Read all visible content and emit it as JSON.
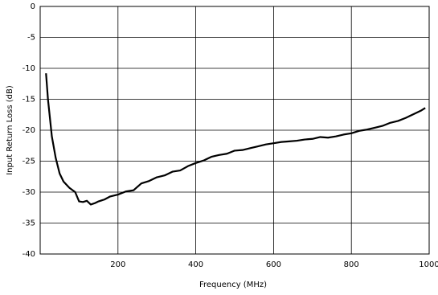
{
  "chart_data": {
    "type": "line",
    "x_label": "Frequency (MHz)",
    "y_label": "Input Return Loss (dB)",
    "x": [
      15,
      20,
      30,
      40,
      50,
      60,
      75,
      90,
      100,
      110,
      120,
      130,
      140,
      150,
      165,
      180,
      200,
      220,
      240,
      260,
      280,
      300,
      320,
      340,
      360,
      380,
      400,
      420,
      440,
      460,
      480,
      500,
      520,
      540,
      560,
      580,
      600,
      620,
      640,
      660,
      680,
      700,
      720,
      740,
      760,
      780,
      800,
      820,
      840,
      860,
      880,
      900,
      920,
      940,
      960,
      980,
      990
    ],
    "series": [
      {
        "color": "#000000",
        "values": [
          -10.8,
          -15,
          -21,
          -24.5,
          -27,
          -28.3,
          -29.3,
          -30,
          -31.5,
          -31.6,
          -31.4,
          -32,
          -31.8,
          -31.5,
          -31.2,
          -30.7,
          -30.4,
          -29.9,
          -29.7,
          -28.6,
          -28.2,
          -27.6,
          -27.3,
          -26.7,
          -26.5,
          -25.8,
          -25.3,
          -24.9,
          -24.3,
          -24.0,
          -23.8,
          -23.3,
          -23.2,
          -22.9,
          -22.6,
          -22.3,
          -22.1,
          -21.9,
          -21.8,
          -21.7,
          -21.5,
          -21.4,
          -21.1,
          -21.2,
          -21.0,
          -20.7,
          -20.5,
          -20.1,
          -19.9,
          -19.6,
          -19.3,
          -18.8,
          -18.5,
          -18.0,
          -17.4,
          -16.8,
          -16.4
        ]
      }
    ],
    "xlim": [
      0,
      1000
    ],
    "xticks": [
      200,
      400,
      600,
      800,
      1000
    ],
    "ylim": [
      -40,
      0
    ],
    "yticks": [
      0,
      -5,
      -10,
      -15,
      -20,
      -25,
      -30,
      -35,
      -40
    ],
    "grid": true
  }
}
